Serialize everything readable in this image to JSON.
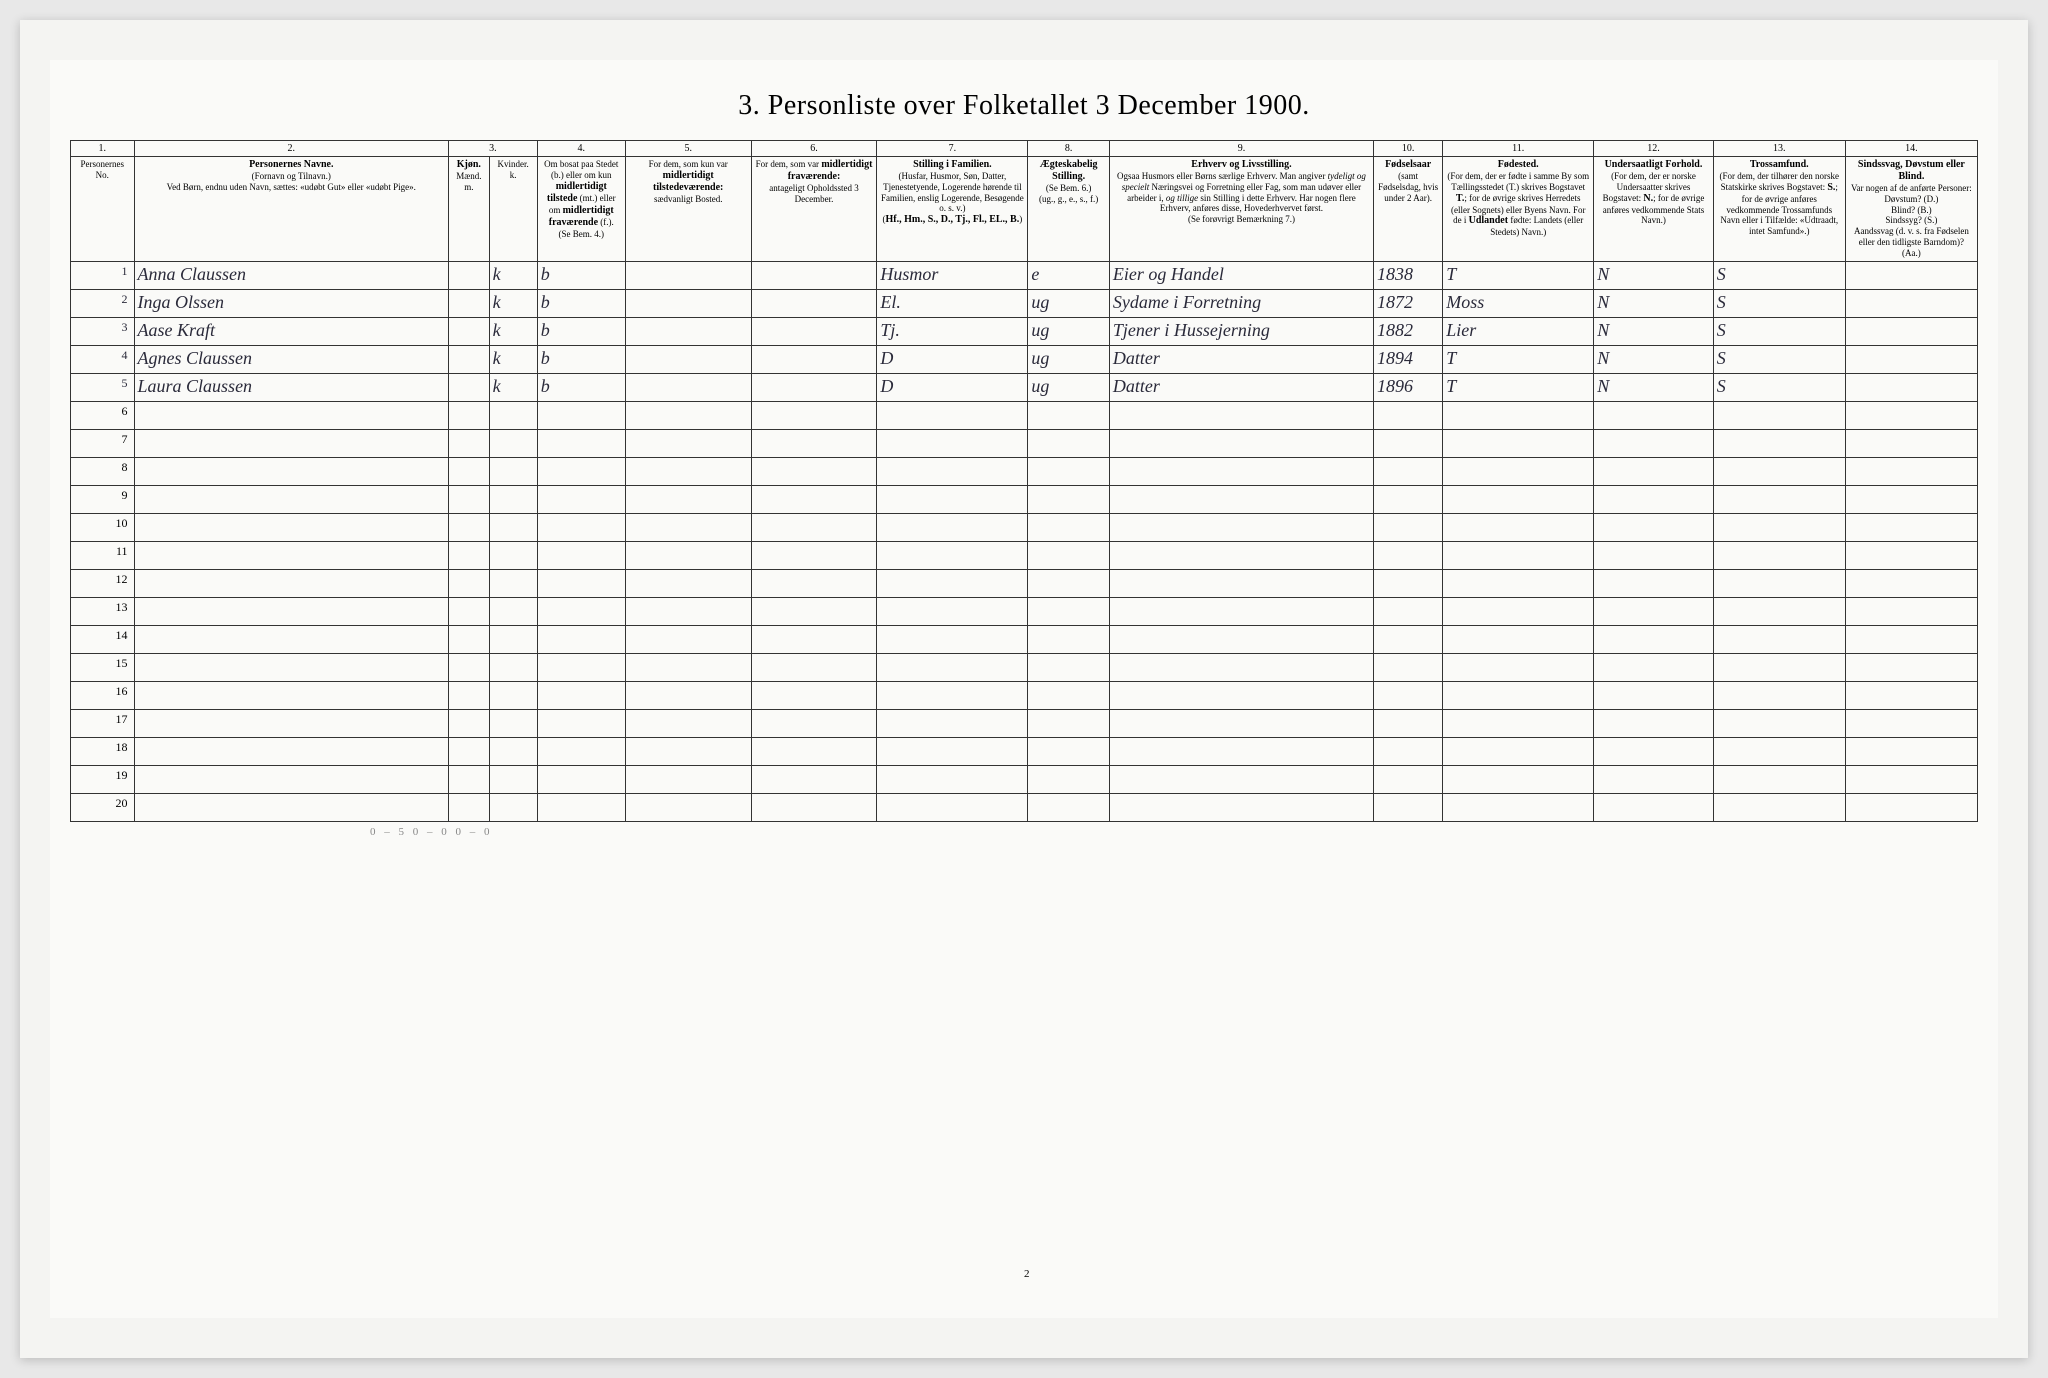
{
  "title": "3. Personliste over Folketallet 3 December 1900.",
  "colnums": [
    "1.",
    "2.",
    "3.",
    "4.",
    "5.",
    "6.",
    "7.",
    "8.",
    "9.",
    "10.",
    "11.",
    "12.",
    "13.",
    "14."
  ],
  "headers": {
    "c1": "Personernes No.",
    "c2": "<b>Personernes Navne.</b><br>(Fornavn og Tilnavn.)<br>Ved Børn, endnu uden Navn, sættes: «udøbt Gut» eller «udøbt Pige».",
    "c3": "<b>Kjøn.</b><br>Mænd.<br>m.",
    "c3b": "Kvinder.<br>k.",
    "c4": "Om bosat paa Stedet (b.) eller om kun <b>midlertidigt tilstede</b> (mt.) eller om <b>midlertidigt fraværende</b> (f.).<br>(Se Bem. 4.)",
    "c5": "For dem, som kun var <b>midlertidigt tilstedeværende:</b><br>sædvanligt Bosted.",
    "c6": "For dem, som var <b>midlertidigt fraværende:</b><br>antageligt Opholdssted 3 December.",
    "c7": "<b>Stilling i Familien.</b><br>(Husfar, Husmor, Søn, Datter, Tjenestetyende, Logerende hørende til Familien, enslig Logerende, Besøgende o. s. v.)<br>(<b>Hf., Hm., S., D., Tj., Fl., EL., B.</b>)",
    "c8": "<b>Ægteskabelig Stilling.</b><br>(Se Bem. 6.)<br>(ug., g., e., s., f.)",
    "c9": "<b>Erhverv og Livsstilling.</b><br>Ogsaa Husmors eller Børns særlige Erhverv. Man angiver <i>tydeligt og specielt</i> Næringsvei og Forretning eller Fag, som man udøver eller arbeider i, <i>og tillige</i> sin Stilling i dette Erhverv. Har nogen flere Erhverv, anføres disse, Hovederhvervet først.<br>(Se forøvrigt Bemærkning 7.)",
    "c10": "<b>Fødselsaar</b><br>(samt Fødselsdag, hvis under 2 Aar).",
    "c11": "<b>Fødested.</b><br>(For dem, der er fødte i samme By som Tællingsstedet (T.) skrives Bogstavet <b>T.</b>; for de øvrige skrives Herredets (eller Sognets) eller Byens Navn. For de i <b>Udlandet</b> fødte: Landets (eller Stedets) Navn.)",
    "c12": "<b>Undersaatligt Forhold.</b><br>(For dem, der er norske Undersaatter skrives Bogstavet: <b>N.</b>; for de øvrige anføres vedkommende Stats Navn.)",
    "c13": "<b>Trossamfund.</b><br>(For dem, der tilhører den norske Statskirke skrives Bogstavet: <b>S.</b>; for de øvrige anføres vedkommende Trossamfunds Navn eller i Tilfælde: «Udtraadt, intet Samfund».)",
    "c14": "<b>Sindssvag, Døvstum eller Blind.</b><br>Var nogen af de anførte Personer:<br>Døvstum? (D.)<br>Blind? (B.)<br>Sindssyg? (S.)<br>Aandssvag (d. v. s. fra Fødselen eller den tidligste Barndom)? (Aa.)"
  },
  "rows": [
    {
      "n": "1",
      "name": "Anna Claussen",
      "mk": "k",
      "res": "b",
      "c5": "",
      "c6": "",
      "fam": "Husmor",
      "civ": "e",
      "occ": "Eier og Handel",
      "year": "1838",
      "born": "T",
      "nat": "N",
      "rel": "S",
      "c14": ""
    },
    {
      "n": "2",
      "name": "Inga Olssen",
      "mk": "k",
      "res": "b",
      "c5": "",
      "c6": "",
      "fam": "El.",
      "civ": "ug",
      "occ": "Sydame i Forretning",
      "year": "1872",
      "born": "Moss",
      "nat": "N",
      "rel": "S",
      "c14": ""
    },
    {
      "n": "3",
      "name": "Aase Kraft",
      "mk": "k",
      "res": "b",
      "c5": "",
      "c6": "",
      "fam": "Tj.",
      "civ": "ug",
      "occ": "Tjener i Hussejerning",
      "year": "1882",
      "born": "Lier",
      "nat": "N",
      "rel": "S",
      "c14": ""
    },
    {
      "n": "4",
      "name": "Agnes Claussen",
      "mk": "k",
      "res": "b",
      "c5": "",
      "c6": "",
      "fam": "D",
      "civ": "ug",
      "occ": "Datter",
      "year": "1894",
      "born": "T",
      "nat": "N",
      "rel": "S",
      "c14": ""
    },
    {
      "n": "5",
      "name": "Laura Claussen",
      "mk": "k",
      "res": "b",
      "c5": "",
      "c6": "",
      "fam": "D",
      "civ": "ug",
      "occ": "Datter",
      "year": "1896",
      "born": "T",
      "nat": "N",
      "rel": "S",
      "c14": ""
    }
  ],
  "empty_rows": [
    "6",
    "7",
    "8",
    "9",
    "10",
    "11",
    "12",
    "13",
    "14",
    "15",
    "16",
    "17",
    "18",
    "19",
    "20"
  ],
  "footnote": "0 – 5      0 – 0      0 – 0",
  "page_number": "2",
  "colors": {
    "page_bg": "#f4f4f2",
    "inner_bg": "#fafaf8",
    "border": "#333333",
    "ink": "#2a2a3a"
  }
}
